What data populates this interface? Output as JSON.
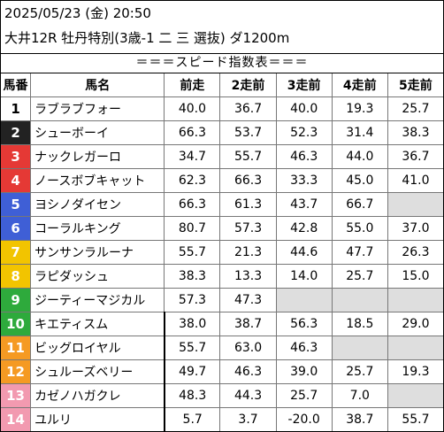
{
  "header": {
    "line1": "2025/05/23 (金) 20:50",
    "line2": "大井12R 牡丹特別(3歳-1 二 三 選抜) ダ1200m"
  },
  "banner": "＝＝＝スピード指数表＝＝＝",
  "columns": [
    "馬番",
    "馬名",
    "前走",
    "2走前",
    "3走前",
    "4走前",
    "5走前"
  ],
  "horses": [
    {
      "no": "1",
      "name": "ラブラブフォー",
      "bg": "#ffffff",
      "fg": "#000000",
      "values": [
        "40.0",
        "36.7",
        "40.0",
        "19.3",
        "25.7"
      ]
    },
    {
      "no": "2",
      "name": "シューボーイ",
      "bg": "#222222",
      "fg": "#ffffff",
      "values": [
        "66.3",
        "53.7",
        "52.3",
        "31.4",
        "38.3"
      ]
    },
    {
      "no": "3",
      "name": "ナックレガーロ",
      "bg": "#e53935",
      "fg": "#ffffff",
      "values": [
        "34.7",
        "55.7",
        "46.3",
        "44.0",
        "36.7"
      ]
    },
    {
      "no": "4",
      "name": "ノースボブキャット",
      "bg": "#e53935",
      "fg": "#ffffff",
      "values": [
        "62.3",
        "66.3",
        "33.3",
        "45.0",
        "41.0"
      ]
    },
    {
      "no": "5",
      "name": "ヨシノダイセン",
      "bg": "#3f5fd6",
      "fg": "#ffffff",
      "values": [
        "66.3",
        "61.3",
        "43.7",
        "66.7",
        ""
      ]
    },
    {
      "no": "6",
      "name": "コーラルキング",
      "bg": "#3f5fd6",
      "fg": "#ffffff",
      "values": [
        "80.7",
        "57.3",
        "42.8",
        "55.0",
        "37.0"
      ]
    },
    {
      "no": "7",
      "name": "サンサンラルーナ",
      "bg": "#f2c400",
      "fg": "#ffffff",
      "values": [
        "55.7",
        "21.3",
        "44.6",
        "47.7",
        "26.3"
      ]
    },
    {
      "no": "8",
      "name": "ラピダッシュ",
      "bg": "#f2c400",
      "fg": "#ffffff",
      "values": [
        "38.3",
        "13.3",
        "14.0",
        "25.7",
        "15.0"
      ]
    },
    {
      "no": "9",
      "name": "ジーティーマジカル",
      "bg": "#2eaa3c",
      "fg": "#ffffff",
      "values": [
        "57.3",
        "47.3",
        "",
        "",
        ""
      ]
    },
    {
      "no": "10",
      "name": "キエティスム",
      "bg": "#2eaa3c",
      "fg": "#ffffff",
      "values": [
        "38.0",
        "38.7",
        "56.3",
        "18.5",
        "29.0"
      ]
    },
    {
      "no": "11",
      "name": "ビッグロイヤル",
      "bg": "#f59a23",
      "fg": "#ffffff",
      "values": [
        "55.7",
        "63.0",
        "46.3",
        "",
        ""
      ]
    },
    {
      "no": "12",
      "name": "シュルーズベリー",
      "bg": "#f59a23",
      "fg": "#ffffff",
      "values": [
        "49.7",
        "46.3",
        "39.0",
        "25.7",
        "19.3"
      ]
    },
    {
      "no": "13",
      "name": "カゼノハガクレ",
      "bg": "#f29ab0",
      "fg": "#ffffff",
      "values": [
        "48.3",
        "44.3",
        "25.7",
        "7.0",
        ""
      ]
    },
    {
      "no": "14",
      "name": "ユルリ",
      "bg": "#f29ab0",
      "fg": "#ffffff",
      "values": [
        "5.7",
        "3.7",
        "-20.0",
        "38.7",
        "55.7"
      ]
    }
  ]
}
